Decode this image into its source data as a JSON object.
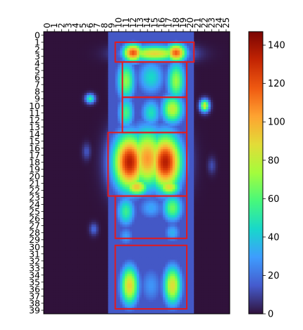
{
  "chart_data": {
    "type": "heatmap",
    "title": "",
    "xlabel": "",
    "ylabel": "",
    "x_tick_labels": [
      "0",
      "1",
      "2",
      "3",
      "4",
      "5",
      "6",
      "7",
      "8",
      "9",
      "10",
      "11",
      "12",
      "13",
      "14",
      "15",
      "16",
      "17",
      "18",
      "19",
      "20",
      "21",
      "22",
      "23",
      "24",
      "25"
    ],
    "y_tick_labels": [
      "0",
      "1",
      "2",
      "3",
      "4",
      "5",
      "6",
      "7",
      "8",
      "9",
      "10",
      "11",
      "12",
      "13",
      "14",
      "15",
      "16",
      "17",
      "18",
      "19",
      "20",
      "21",
      "22",
      "23",
      "24",
      "25",
      "26",
      "27",
      "28",
      "29",
      "30",
      "31",
      "32",
      "33",
      "34",
      "35",
      "36",
      "37",
      "38",
      "39"
    ],
    "x_range": [
      0,
      25
    ],
    "y_range": [
      0,
      39
    ],
    "y_axis_inverted": true,
    "colormap": "turbo",
    "colorbar": {
      "range": [
        0,
        147
      ],
      "ticks": [
        0,
        20,
        40,
        60,
        80,
        100,
        120,
        140
      ]
    },
    "blobs": [
      {
        "x": 12,
        "y": 2.5,
        "sx": 1.0,
        "sy": 0.9,
        "value": 120
      },
      {
        "x": 18,
        "y": 2.5,
        "sx": 1.0,
        "sy": 0.9,
        "value": 118
      },
      {
        "x": 15,
        "y": 2.6,
        "sx": 2.8,
        "sy": 0.8,
        "value": 90
      },
      {
        "x": 11,
        "y": 6.5,
        "sx": 0.9,
        "sy": 2.0,
        "value": 70
      },
      {
        "x": 18,
        "y": 6.5,
        "sx": 0.9,
        "sy": 2.0,
        "value": 72
      },
      {
        "x": 14.5,
        "y": 6.0,
        "sx": 1.4,
        "sy": 1.8,
        "value": 45
      },
      {
        "x": 11,
        "y": 11.0,
        "sx": 0.8,
        "sy": 1.6,
        "value": 58
      },
      {
        "x": 17.5,
        "y": 10.5,
        "sx": 1.1,
        "sy": 1.5,
        "value": 80
      },
      {
        "x": 14.5,
        "y": 11.0,
        "sx": 1.0,
        "sy": 1.4,
        "value": 48
      },
      {
        "x": 6,
        "y": 9.0,
        "sx": 0.45,
        "sy": 0.45,
        "value": 55
      },
      {
        "x": 22,
        "y": 10.0,
        "sx": 0.45,
        "sy": 0.6,
        "value": 85
      },
      {
        "x": 11.5,
        "y": 18.0,
        "sx": 1.6,
        "sy": 2.8,
        "value": 135
      },
      {
        "x": 16.5,
        "y": 18.0,
        "sx": 1.6,
        "sy": 2.8,
        "value": 135
      },
      {
        "x": 14,
        "y": 17.5,
        "sx": 1.8,
        "sy": 3.0,
        "value": 105
      },
      {
        "x": 12.5,
        "y": 21.5,
        "sx": 1.2,
        "sy": 0.9,
        "value": 95
      },
      {
        "x": 17,
        "y": 21.5,
        "sx": 1.1,
        "sy": 0.9,
        "value": 90
      },
      {
        "x": 11,
        "y": 25.0,
        "sx": 0.9,
        "sy": 1.5,
        "value": 55
      },
      {
        "x": 17.5,
        "y": 24.5,
        "sx": 1.0,
        "sy": 1.4,
        "value": 65
      },
      {
        "x": 14.5,
        "y": 24.5,
        "sx": 1.3,
        "sy": 1.2,
        "value": 32
      },
      {
        "x": 11,
        "y": 28.5,
        "sx": 0.8,
        "sy": 1.0,
        "value": 30
      },
      {
        "x": 17.5,
        "y": 28.0,
        "sx": 0.8,
        "sy": 1.0,
        "value": 35
      },
      {
        "x": 11.5,
        "y": 35.5,
        "sx": 0.9,
        "sy": 2.0,
        "value": 92
      },
      {
        "x": 17.5,
        "y": 35.5,
        "sx": 0.9,
        "sy": 2.0,
        "value": 88
      },
      {
        "x": 14.5,
        "y": 35.5,
        "sx": 1.2,
        "sy": 2.0,
        "value": 28
      },
      {
        "x": 6.5,
        "y": 27.5,
        "sx": 0.4,
        "sy": 0.6,
        "value": 18
      },
      {
        "x": 5.5,
        "y": 16.5,
        "sx": 0.4,
        "sy": 0.8,
        "value": 14
      },
      {
        "x": 23,
        "y": 18.5,
        "sx": 0.4,
        "sy": 0.8,
        "value": 12
      }
    ],
    "column_band": {
      "x_from": 8.5,
      "x_to": 20.5,
      "value": 14
    },
    "boxes": [
      {
        "x0": 9.5,
        "x1": 20.5,
        "y0": 1.0,
        "y1": 3.8
      },
      {
        "x0": 10.5,
        "x1": 19.5,
        "y0": 3.8,
        "y1": 8.8
      },
      {
        "x0": 10.5,
        "x1": 19.5,
        "y0": 8.8,
        "y1": 13.8
      },
      {
        "x0": 8.5,
        "x1": 19.5,
        "y0": 13.8,
        "y1": 22.8
      },
      {
        "x0": 9.5,
        "x1": 19.5,
        "y0": 22.8,
        "y1": 28.8
      },
      {
        "x0": 9.5,
        "x1": 19.5,
        "y0": 29.8,
        "y1": 38.8
      }
    ],
    "box_color": "#e41a1c"
  }
}
